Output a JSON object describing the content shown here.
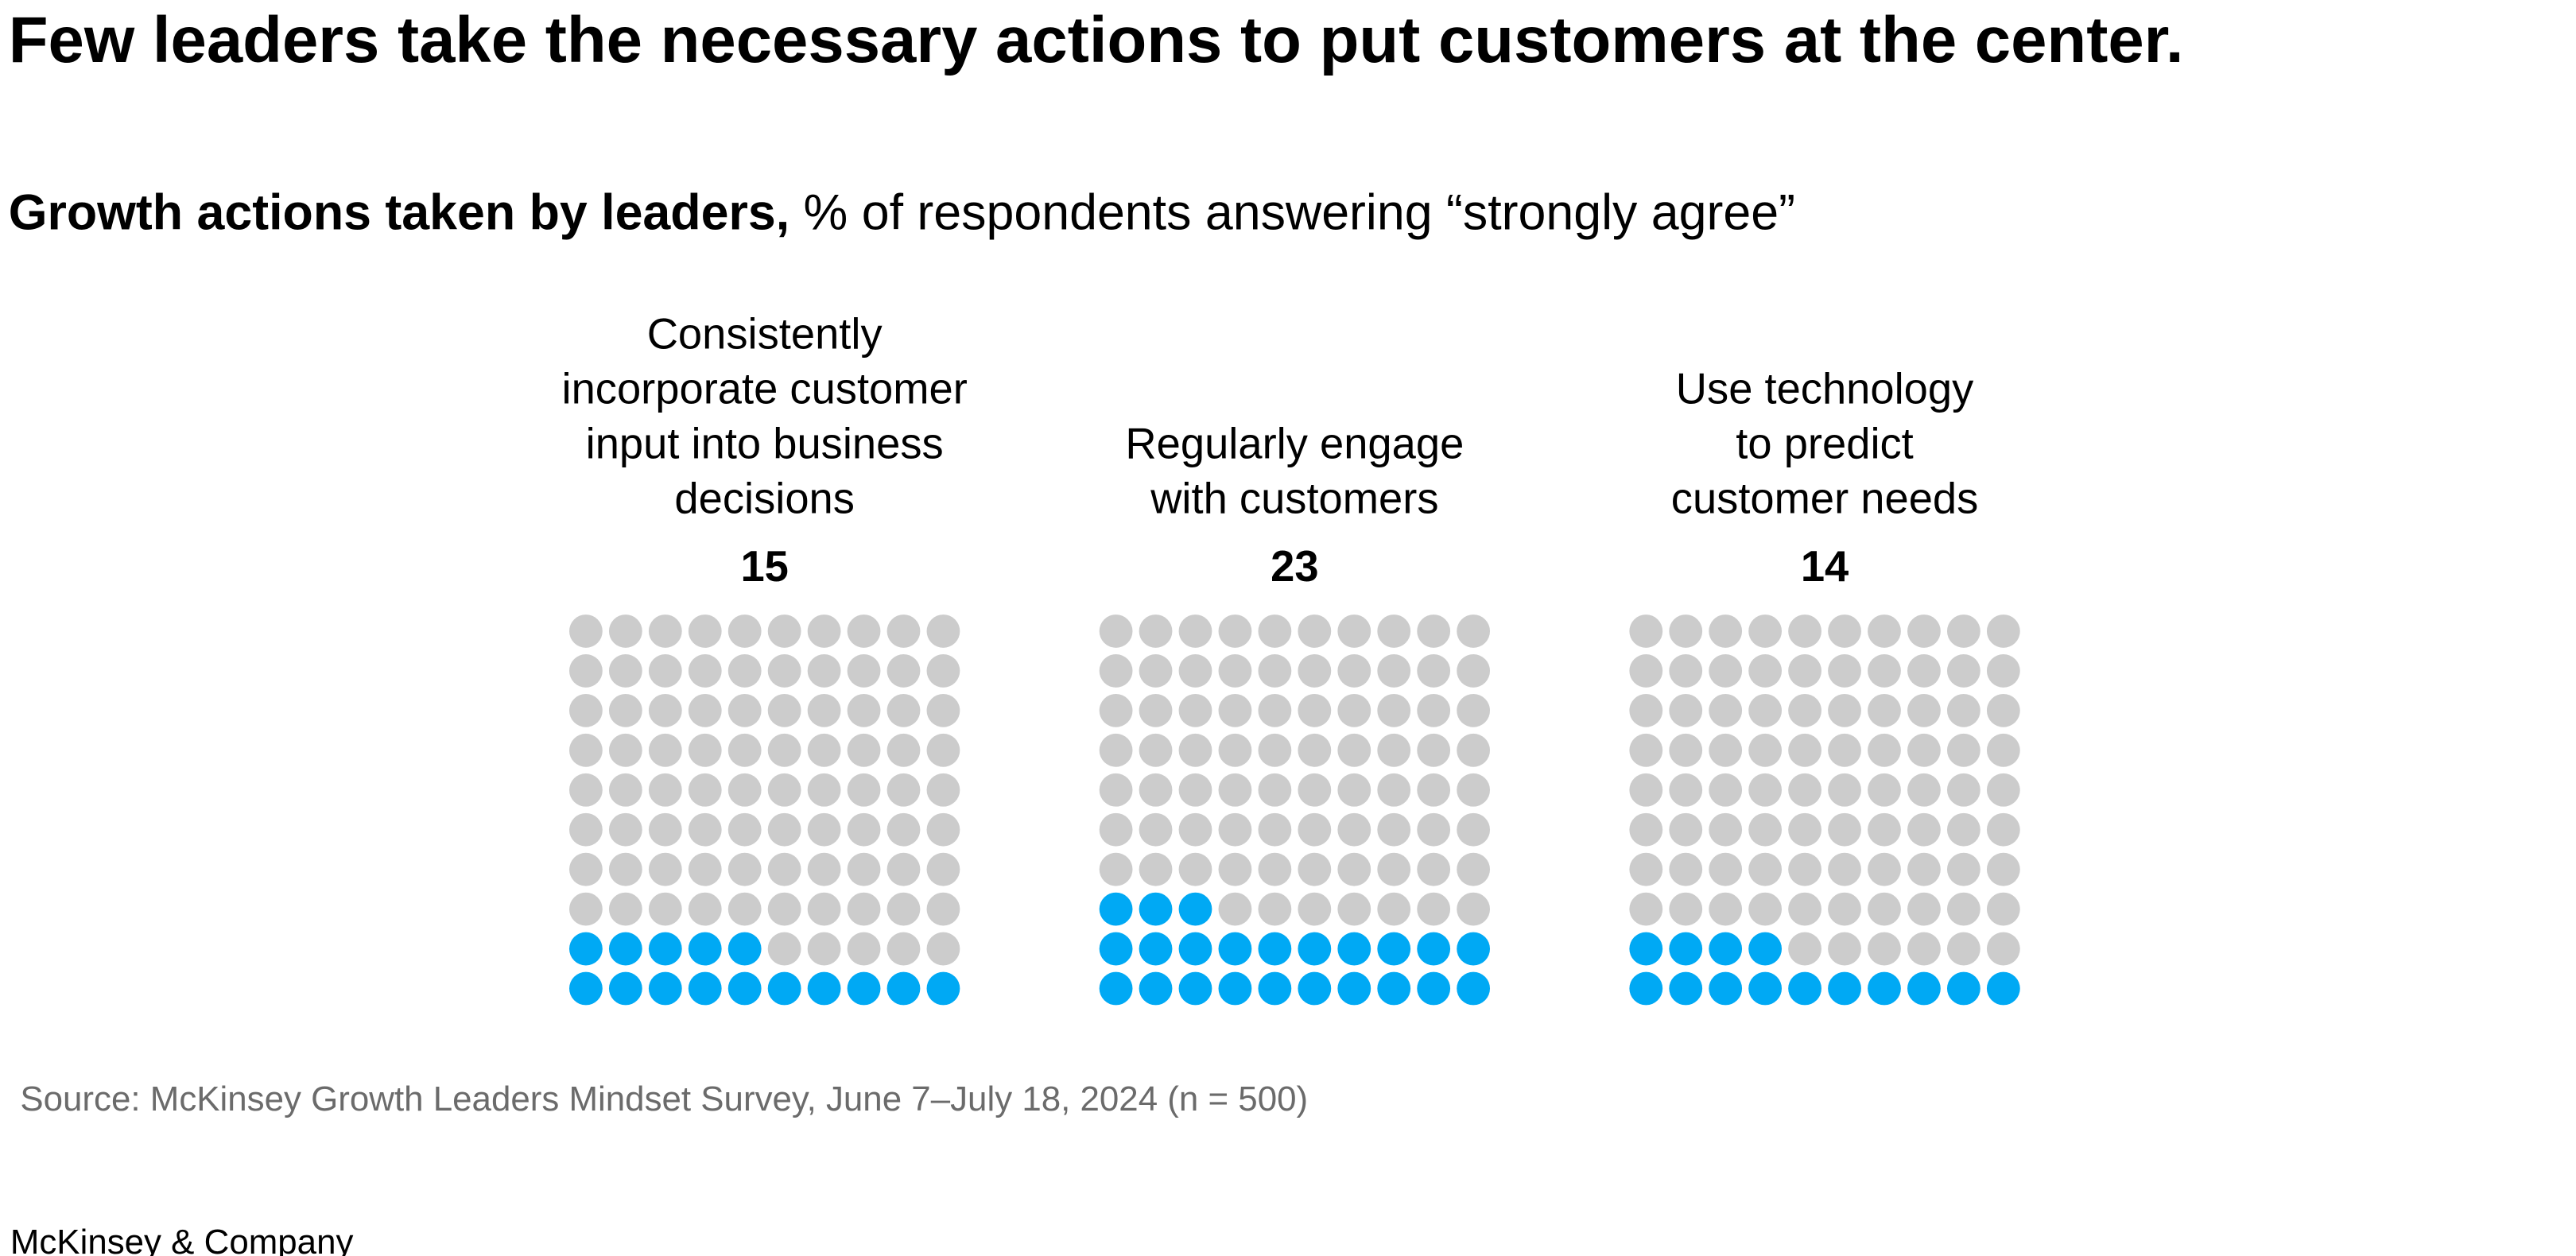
{
  "chart_data": {
    "type": "waffle",
    "title": "Few leaders take the necessary actions to put customers at the center.",
    "subtitle_bold": "Growth actions taken by leaders,",
    "subtitle": "% of respondents answering “strongly agree”",
    "categories": [
      [
        "Consistently",
        "incorporate customer",
        "input into business",
        "decisions"
      ],
      [
        "Regularly engage",
        "with customers"
      ],
      [
        "Use technology",
        "to predict",
        "customer needs"
      ]
    ],
    "values": [
      15,
      23,
      14
    ],
    "color": "#00a9f4",
    "empty_color": "#cccccc",
    "source": "Source: McKinsey Growth Leaders Mindset Survey, June 7–July 18, 2024 (n = 500)",
    "brand": "McKinsey & Company"
  }
}
